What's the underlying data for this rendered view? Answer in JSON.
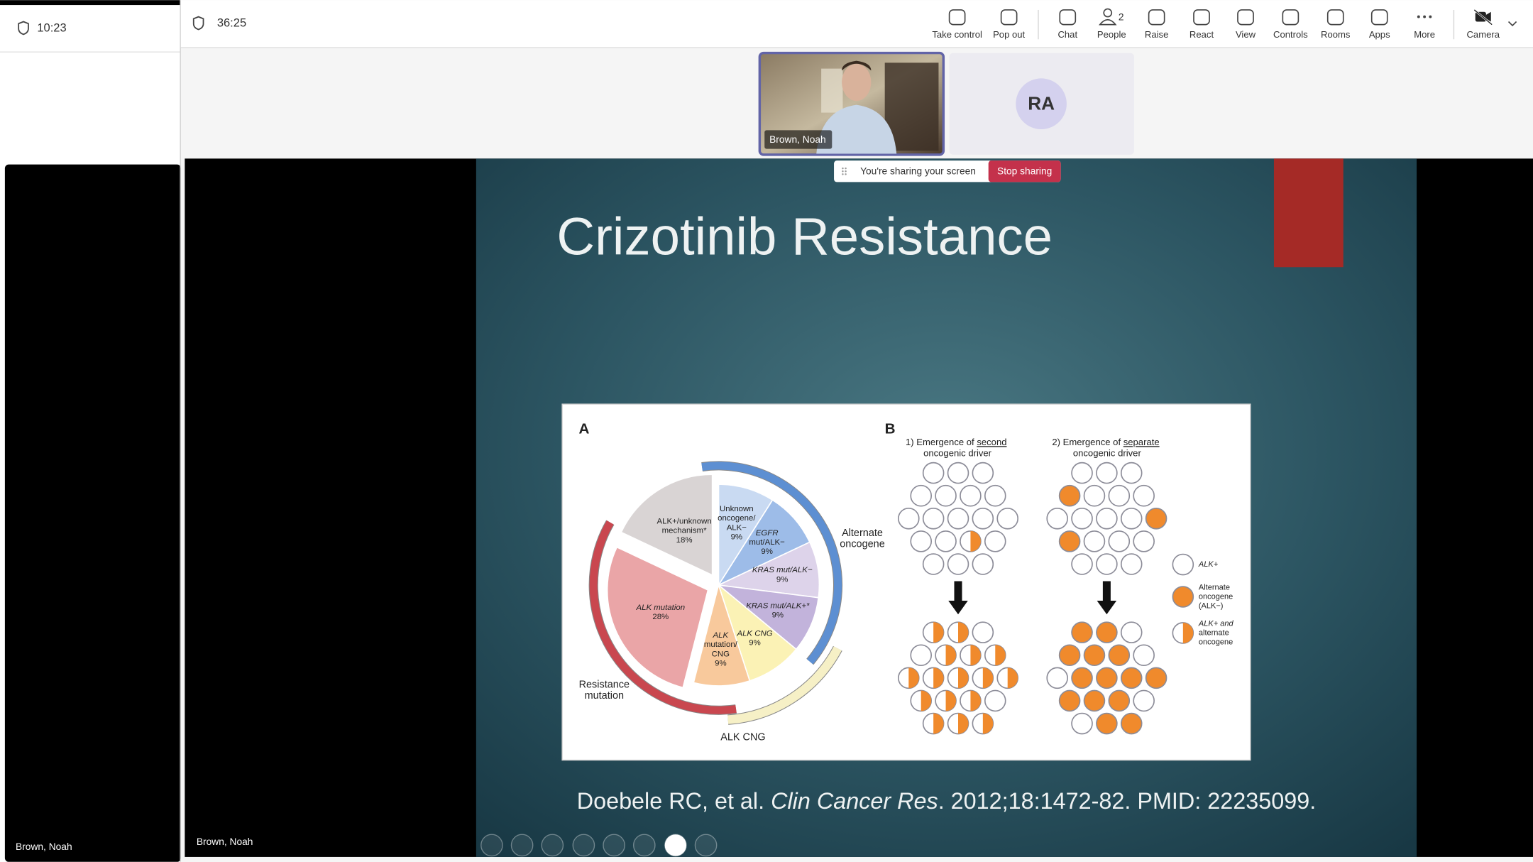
{
  "left_panel": {
    "time": "10:23",
    "participant": "Brown, Noah"
  },
  "meeting": {
    "time": "36:25"
  },
  "toolbar": [
    {
      "label": "Take control"
    },
    {
      "label": "Pop out"
    },
    {
      "label": "Chat"
    },
    {
      "label": "People",
      "badge": "2"
    },
    {
      "label": "Raise"
    },
    {
      "label": "React"
    },
    {
      "label": "View"
    },
    {
      "label": "Controls"
    },
    {
      "label": "Rooms"
    },
    {
      "label": "Apps"
    },
    {
      "label": "More"
    },
    {
      "label": "Camera"
    }
  ],
  "video_tiles": [
    {
      "name": "Brown, Noah"
    },
    {
      "initials": "RA"
    }
  ],
  "share_banner": {
    "message": "You're sharing your screen",
    "button": "Stop sharing"
  },
  "stage_participant": "Brown, Noah",
  "slide": {
    "title": "Crizotinib Resistance",
    "citation": [
      "Doebele RC, et al. ",
      "Clin Cancer Res",
      ". 2012;18:1472-82. PMID: 22235099."
    ],
    "figure": {
      "panel_a": {
        "label": "A",
        "segments": [
          {
            "label_lines": [
              "Unknown",
              "oncogene/",
              "ALK−"
            ],
            "value": 9,
            "value_label": "9%",
            "color": "#c9daf2"
          },
          {
            "label_lines": [
              "EGFR",
              "mut/ALK−"
            ],
            "value": 9,
            "value_label": "9%",
            "color": "#9dbce8"
          },
          {
            "label_lines": [
              "KRAS mut/ALK−"
            ],
            "value": 9,
            "value_label": "9%",
            "color": "#ddd3ea"
          },
          {
            "label_lines": [
              "KRAS mut/ALK+*"
            ],
            "value": 9,
            "value_label": "9%",
            "color": "#c2b3db"
          },
          {
            "label_lines": [
              "ALK CNG"
            ],
            "value": 9,
            "value_label": "9%",
            "color": "#fbf2b5"
          },
          {
            "label_lines": [
              "ALK",
              "mutation/",
              "CNG"
            ],
            "value": 9,
            "value_label": "9%",
            "color": "#f8c99c"
          },
          {
            "label_lines": [
              "ALK mutation"
            ],
            "value": 28,
            "value_label": "28%",
            "color": "#eaa5a7",
            "exploded": true
          },
          {
            "label_lines": [
              "ALK+/unknown",
              "mechanism*"
            ],
            "value": 18,
            "value_label": "18%",
            "color": "#d9d4d4",
            "exploded": true
          }
        ],
        "arcs": [
          {
            "label_lines": [
              "Alternate",
              "oncogene"
            ],
            "color": "#5d8fd2"
          },
          {
            "label_lines": [
              "Resistance",
              "mutation"
            ],
            "color": "#c9474f"
          },
          {
            "label_lines": [
              "ALK CNG"
            ],
            "color": "#f6f0c6"
          }
        ]
      },
      "panel_b": {
        "label": "B",
        "scenario_1": [
          "1) Emergence of ",
          "second",
          " oncogenic driver"
        ],
        "scenario_2": [
          "2) Emergence of ",
          "separate",
          " oncogenic driver"
        ],
        "legend": [
          {
            "label_lines": [
              "ALK+"
            ]
          },
          {
            "label_lines": [
              "Alternate",
              "oncogene",
              "(ALK−)"
            ]
          },
          {
            "label_lines": [
              "ALK+ and",
              "alternate",
              "oncogene"
            ]
          }
        ]
      }
    }
  }
}
